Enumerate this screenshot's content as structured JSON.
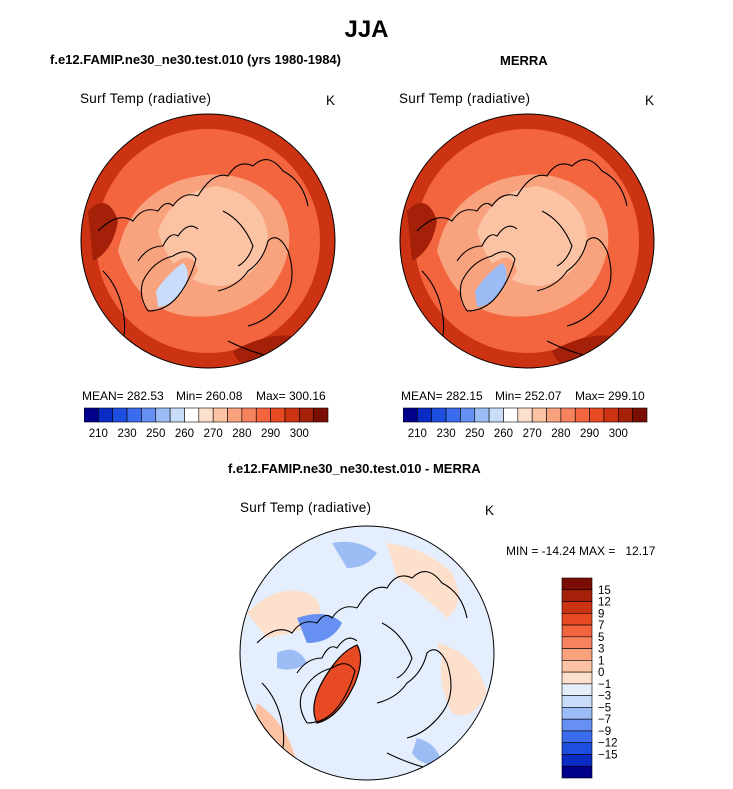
{
  "figure": {
    "title": "JJA",
    "left_header": "f.e12.FAMIP.ne30_ne30.test.010 (yrs 1980-1984)",
    "right_header": "MERRA",
    "bottom_header": "f.e12.FAMIP.ne30_ne30.test.010 - MERRA"
  },
  "colors": {
    "abs_scale": [
      "#00008b",
      "#0a2cc4",
      "#1e4ee0",
      "#3b6cee",
      "#6690f2",
      "#9cbcf6",
      "#c9dcfa",
      "#ffffff",
      "#fde0cc",
      "#fbc3a4",
      "#f9a27e",
      "#f6835e",
      "#f2653f",
      "#e84a24",
      "#cc3312",
      "#a52008",
      "#7a0e02"
    ],
    "diff_scale": [
      "#00008b",
      "#0a2cc4",
      "#1e4ee0",
      "#3b6cee",
      "#6690f2",
      "#9cbcf6",
      "#c9dcfa",
      "#e4eefc",
      "#fde0cc",
      "#fbc3a4",
      "#f9a27e",
      "#f6835e",
      "#f2653f",
      "#e84a24",
      "#cc3312",
      "#a52008",
      "#7a0e02"
    ]
  },
  "chart_data": [
    {
      "type": "heatmap",
      "projection": "north-polar-stereographic",
      "panel": "model",
      "title": "Surf Temp (radiative)",
      "units": "K",
      "stats": {
        "mean_label": "MEAN= 282.53",
        "min_label": "Min= 260.08",
        "max_label": "Max= 300.16"
      },
      "mean": 282.53,
      "min": 260.08,
      "max": 300.16,
      "colorbar": {
        "orientation": "horizontal",
        "labels": [
          "210",
          "230",
          "250",
          "260",
          "270",
          "280",
          "290",
          "300"
        ]
      }
    },
    {
      "type": "heatmap",
      "projection": "north-polar-stereographic",
      "panel": "obs",
      "title": "Surf Temp (radiative)",
      "units": "K",
      "stats": {
        "mean_label": "MEAN= 282.15",
        "min_label": "Min= 252.07",
        "max_label": "Max= 299.10"
      },
      "mean": 282.15,
      "min": 252.07,
      "max": 299.1,
      "colorbar": {
        "orientation": "horizontal",
        "labels": [
          "210",
          "230",
          "250",
          "260",
          "270",
          "280",
          "290",
          "300"
        ]
      }
    },
    {
      "type": "heatmap",
      "projection": "north-polar-stereographic",
      "panel": "difference",
      "title": "Surf Temp (radiative)",
      "units": "K",
      "stats": {
        "range_label": "MIN = -14.24 MAX =   12.17"
      },
      "min": -14.24,
      "max": 12.17,
      "colorbar": {
        "orientation": "vertical",
        "labels": [
          "15",
          "12",
          "9",
          "7",
          "5",
          "3",
          "1",
          "0",
          "−1",
          "−3",
          "−5",
          "−7",
          "−9",
          "−12",
          "−15"
        ]
      }
    }
  ]
}
